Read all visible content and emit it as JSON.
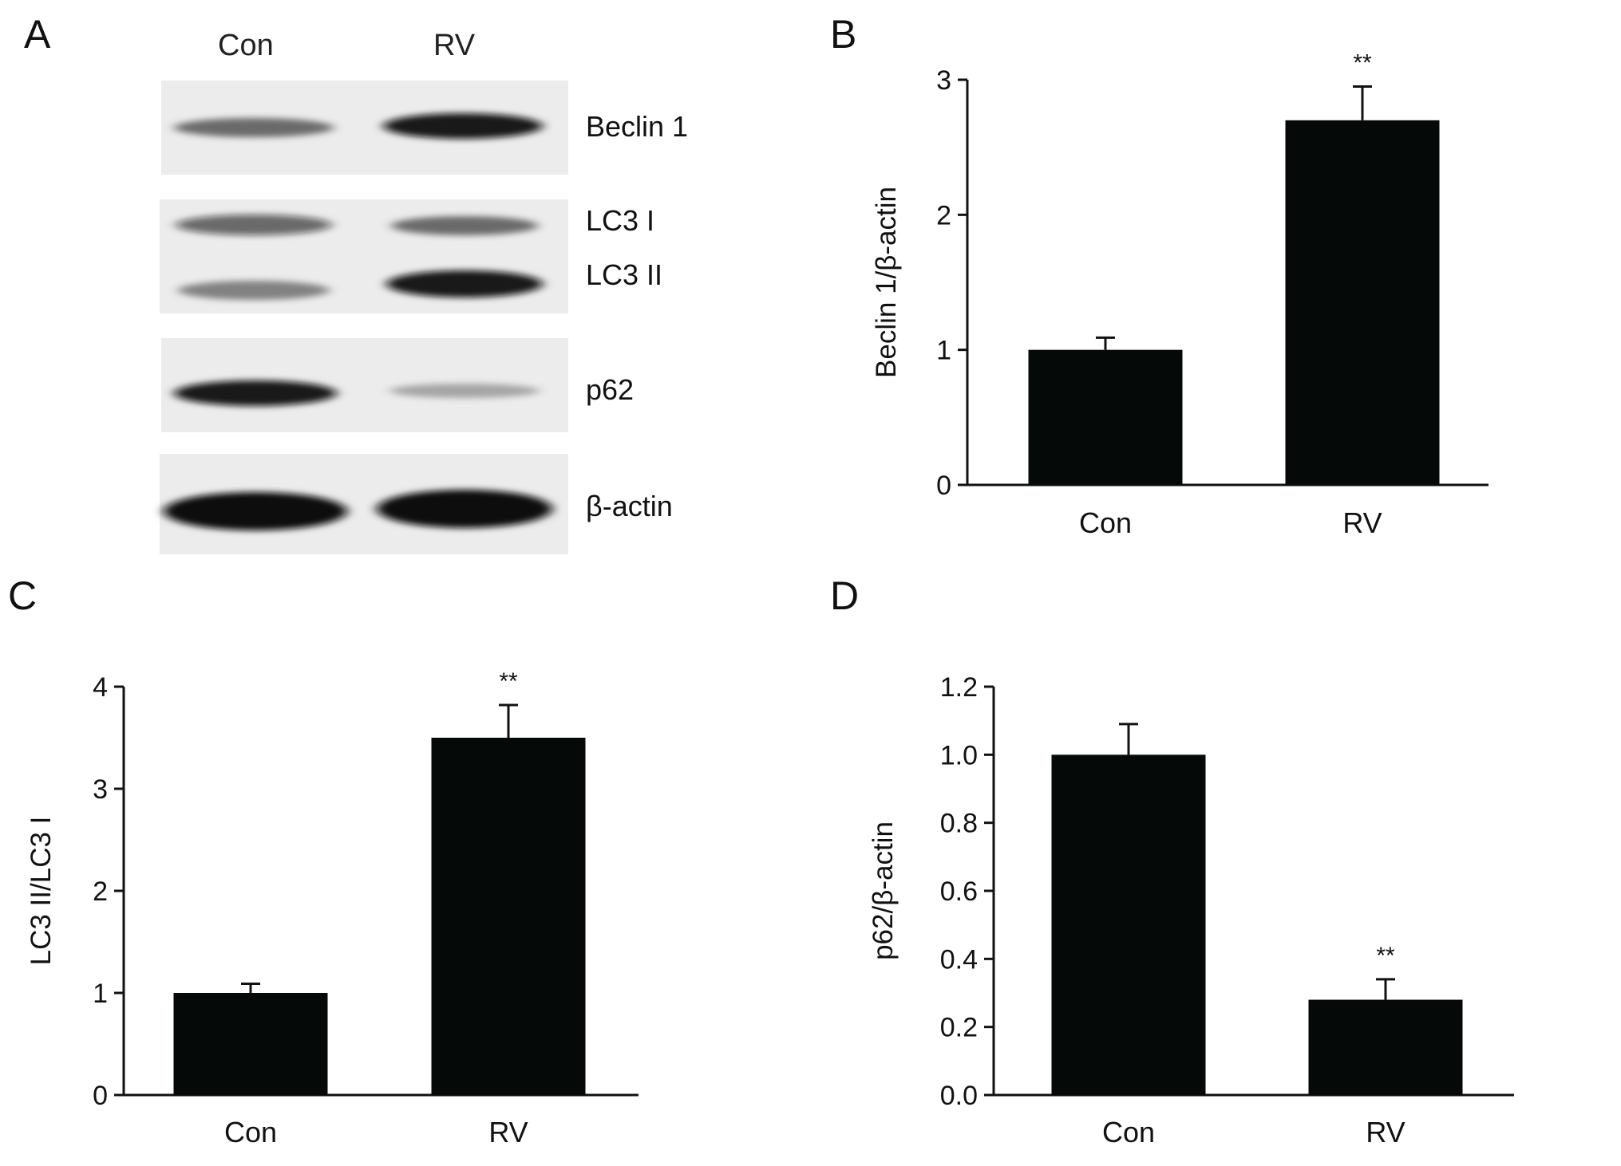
{
  "panels": {
    "a": "A",
    "b": "B",
    "c": "C",
    "d": "D"
  },
  "blot": {
    "lanes": [
      "Con",
      "RV"
    ],
    "bands": [
      "Beclin 1",
      "LC3 I",
      "LC3 II",
      "p62",
      "β-actin"
    ]
  },
  "chart_data": [
    {
      "type": "bar",
      "panel": "B",
      "categories": [
        "Con",
        "RV"
      ],
      "values": [
        1.0,
        2.7
      ],
      "errors": [
        0.09,
        0.25
      ],
      "significance": [
        "",
        "**"
      ],
      "ylabel": "Beclin 1/β-actin",
      "xlabel": "",
      "ylim": [
        0,
        3
      ],
      "yticks": [
        0,
        1,
        2,
        3
      ],
      "ytick_labels": [
        "0",
        "1",
        "2",
        "3"
      ]
    },
    {
      "type": "bar",
      "panel": "C",
      "categories": [
        "Con",
        "RV"
      ],
      "values": [
        1.0,
        3.5
      ],
      "errors": [
        0.09,
        0.32
      ],
      "significance": [
        "",
        "**"
      ],
      "ylabel": "LC3 II/LC3 I",
      "xlabel": "",
      "ylim": [
        0,
        4
      ],
      "yticks": [
        0,
        1,
        2,
        3,
        4
      ],
      "ytick_labels": [
        "0",
        "1",
        "2",
        "3",
        "4"
      ]
    },
    {
      "type": "bar",
      "panel": "D",
      "categories": [
        "Con",
        "RV"
      ],
      "values": [
        1.0,
        0.28
      ],
      "errors": [
        0.09,
        0.06
      ],
      "significance": [
        "",
        "**"
      ],
      "ylabel": "p62/β-actin",
      "xlabel": "",
      "ylim": [
        0,
        1.2
      ],
      "yticks": [
        0,
        0.2,
        0.4,
        0.6,
        0.8,
        1.0,
        1.2
      ],
      "ytick_labels": [
        "0.0",
        "0.2",
        "0.4",
        "0.6",
        "0.8",
        "1.0",
        "1.2"
      ]
    }
  ],
  "colors": {
    "bar": "#050a08",
    "axis": "#111111",
    "band": "#0b0b0b",
    "blot_background": "#ececec"
  }
}
